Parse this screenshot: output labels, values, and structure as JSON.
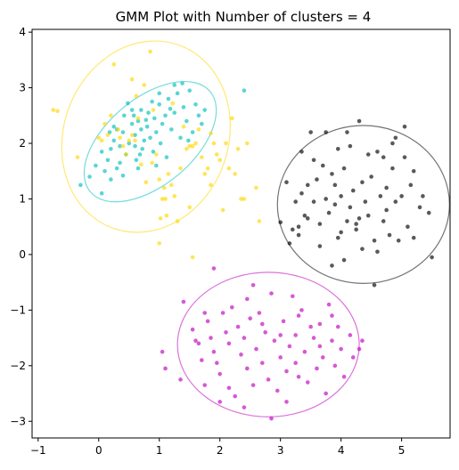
{
  "chart_data": {
    "type": "scatter",
    "title": "GMM Plot with Number of clusters = 4",
    "xlabel": "",
    "ylabel": "",
    "xlim": [
      -1.1,
      5.8
    ],
    "ylim": [
      -3.3,
      4.05
    ],
    "xticks": [
      -1,
      0,
      1,
      2,
      3,
      4,
      5
    ],
    "yticks": [
      -3,
      -2,
      -1,
      0,
      1,
      2,
      3,
      4
    ],
    "grid": false,
    "legend": "none",
    "clusters": [
      {
        "color": "#00bfbf",
        "center": [
          0.85,
          2.03
        ],
        "ellipse": {
          "rx": 1.29,
          "ry": 0.78,
          "angle_deg": 40
        },
        "points": [
          [
            -0.3,
            1.25
          ],
          [
            -0.15,
            1.4
          ],
          [
            -0.05,
            1.6
          ],
          [
            0.05,
            1.85
          ],
          [
            0.15,
            1.7
          ],
          [
            0.2,
            1.9
          ],
          [
            0.25,
            2.05
          ],
          [
            0.3,
            2.25
          ],
          [
            0.35,
            1.95
          ],
          [
            0.4,
            2.2
          ],
          [
            0.42,
            2.5
          ],
          [
            0.45,
            1.8
          ],
          [
            0.5,
            2.0
          ],
          [
            0.55,
            2.35
          ],
          [
            0.6,
            2.15
          ],
          [
            0.62,
            1.7
          ],
          [
            0.65,
            2.4
          ],
          [
            0.7,
            2.6
          ],
          [
            0.72,
            1.9
          ],
          [
            0.75,
            2.05
          ],
          [
            0.8,
            2.3
          ],
          [
            0.82,
            2.55
          ],
          [
            0.85,
            2.1
          ],
          [
            0.9,
            1.85
          ],
          [
            0.92,
            2.45
          ],
          [
            0.95,
            2.2
          ],
          [
            1.0,
            2.7
          ],
          [
            1.02,
            2.0
          ],
          [
            1.05,
            2.35
          ],
          [
            1.1,
            2.5
          ],
          [
            1.12,
            1.75
          ],
          [
            1.15,
            2.8
          ],
          [
            1.2,
            2.25
          ],
          [
            1.25,
            2.55
          ],
          [
            1.3,
            2.9
          ],
          [
            1.35,
            2.1
          ],
          [
            1.4,
            2.65
          ],
          [
            1.45,
            2.4
          ],
          [
            1.5,
            2.95
          ],
          [
            1.55,
            2.2
          ],
          [
            1.6,
            2.7
          ],
          [
            1.65,
            2.5
          ],
          [
            1.7,
            2.35
          ],
          [
            1.75,
            2.6
          ],
          [
            0.3,
            1.55
          ],
          [
            0.2,
            1.35
          ],
          [
            0.1,
            1.5
          ],
          [
            0.55,
            2.6
          ],
          [
            0.65,
            1.55
          ],
          [
            0.95,
            1.6
          ],
          [
            1.0,
            2.9
          ],
          [
            0.48,
            2.72
          ],
          [
            1.25,
            3.05
          ],
          [
            1.38,
            3.08
          ],
          [
            0.78,
            2.42
          ],
          [
            0.35,
            1.65
          ],
          [
            0.6,
            1.95
          ],
          [
            0.88,
            2.75
          ],
          [
            1.18,
            2.62
          ],
          [
            0.7,
            2.25
          ],
          [
            0.18,
            2.2
          ],
          [
            0.05,
            1.1
          ],
          [
            0.58,
            2.5
          ],
          [
            1.48,
            2.05
          ],
          [
            2.4,
            2.95
          ],
          [
            0.4,
            1.42
          ],
          [
            0.25,
            2.3
          ],
          [
            0.68,
            1.8
          ]
        ]
      },
      {
        "color": "#ffd700",
        "center": [
          0.78,
          2.12
        ],
        "ellipse": {
          "rx": 1.36,
          "ry": 1.75,
          "angle_deg": 160
        },
        "points": [
          [
            -0.75,
            2.6
          ],
          [
            -0.68,
            2.58
          ],
          [
            -0.35,
            1.75
          ],
          [
            0.0,
            2.1
          ],
          [
            0.05,
            2.05
          ],
          [
            0.2,
            2.5
          ],
          [
            0.25,
            3.42
          ],
          [
            0.35,
            2.1
          ],
          [
            0.4,
            1.95
          ],
          [
            0.45,
            1.8
          ],
          [
            0.5,
            2.05
          ],
          [
            0.55,
            2.15
          ],
          [
            0.6,
            2.05
          ],
          [
            0.65,
            2.45
          ],
          [
            0.7,
            1.62
          ],
          [
            0.75,
            3.05
          ],
          [
            0.78,
            1.3
          ],
          [
            0.85,
            3.65
          ],
          [
            0.9,
            2.6
          ],
          [
            0.95,
            1.8
          ],
          [
            1.0,
            1.35
          ],
          [
            1.02,
            0.65
          ],
          [
            1.05,
            1.0
          ],
          [
            1.08,
            1.2
          ],
          [
            1.1,
            1.0
          ],
          [
            1.12,
            0.7
          ],
          [
            1.15,
            1.45
          ],
          [
            1.2,
            1.25
          ],
          [
            1.25,
            1.05
          ],
          [
            1.3,
            0.6
          ],
          [
            1.35,
            1.55
          ],
          [
            1.4,
            2.3
          ],
          [
            1.45,
            1.9
          ],
          [
            1.5,
            1.95
          ],
          [
            1.55,
            1.95
          ],
          [
            1.6,
            2.0
          ],
          [
            1.65,
            2.25
          ],
          [
            1.7,
            1.75
          ],
          [
            1.75,
            1.45
          ],
          [
            1.8,
            1.55
          ],
          [
            1.85,
            1.25
          ],
          [
            1.9,
            2.0
          ],
          [
            1.95,
            1.8
          ],
          [
            2.0,
            1.7
          ],
          [
            2.05,
            0.8
          ],
          [
            2.1,
            2.0
          ],
          [
            2.15,
            1.55
          ],
          [
            2.2,
            2.45
          ],
          [
            2.25,
            1.45
          ],
          [
            2.3,
            1.9
          ],
          [
            2.35,
            1.0
          ],
          [
            2.4,
            1.0
          ],
          [
            2.45,
            2.0
          ],
          [
            2.6,
            1.2
          ],
          [
            2.65,
            0.6
          ],
          [
            0.1,
            2.35
          ],
          [
            0.32,
            2.25
          ],
          [
            0.55,
            3.15
          ],
          [
            0.62,
            2.85
          ],
          [
            1.22,
            2.72
          ],
          [
            0.15,
            2.15
          ],
          [
            1.5,
            0.85
          ],
          [
            1.0,
            0.2
          ],
          [
            1.55,
            -0.05
          ],
          [
            0.88,
            1.65
          ],
          [
            1.85,
            2.18
          ]
        ]
      },
      {
        "color": "#000000",
        "center": [
          4.37,
          0.9
        ],
        "ellipse": {
          "rx": 1.42,
          "ry": 1.42,
          "angle_deg": 0
        },
        "points": [
          [
            3.0,
            0.58
          ],
          [
            3.1,
            1.3
          ],
          [
            3.15,
            0.2
          ],
          [
            3.2,
            0.45
          ],
          [
            3.25,
            0.95
          ],
          [
            3.3,
            0.5
          ],
          [
            3.35,
            1.1
          ],
          [
            3.4,
            0.7
          ],
          [
            3.45,
            1.25
          ],
          [
            3.5,
            2.2
          ],
          [
            3.55,
            0.95
          ],
          [
            3.6,
            1.35
          ],
          [
            3.65,
            0.55
          ],
          [
            3.7,
            1.6
          ],
          [
            3.75,
            1.0
          ],
          [
            3.8,
            0.75
          ],
          [
            3.85,
            1.45
          ],
          [
            3.9,
            1.25
          ],
          [
            3.95,
            0.3
          ],
          [
            4.0,
            1.05
          ],
          [
            4.05,
            1.55
          ],
          [
            4.1,
            0.6
          ],
          [
            4.15,
            0.85
          ],
          [
            4.2,
            1.15
          ],
          [
            4.25,
            0.45
          ],
          [
            4.3,
            2.4
          ],
          [
            4.35,
            1.3
          ],
          [
            4.4,
            0.95
          ],
          [
            4.45,
            0.7
          ],
          [
            4.5,
            1.4
          ],
          [
            4.55,
            0.25
          ],
          [
            4.6,
            1.85
          ],
          [
            4.65,
            1.05
          ],
          [
            4.7,
            0.6
          ],
          [
            4.75,
            1.2
          ],
          [
            4.8,
            0.35
          ],
          [
            4.85,
            1.55
          ],
          [
            4.9,
            0.95
          ],
          [
            4.95,
            0.25
          ],
          [
            5.0,
            1.05
          ],
          [
            5.05,
            1.75
          ],
          [
            5.1,
            0.5
          ],
          [
            5.15,
            1.25
          ],
          [
            5.2,
            1.5
          ],
          [
            5.3,
            0.85
          ],
          [
            5.35,
            1.05
          ],
          [
            5.45,
            0.75
          ],
          [
            5.5,
            -0.05
          ],
          [
            3.35,
            1.85
          ],
          [
            3.55,
            1.7
          ],
          [
            3.95,
            1.9
          ],
          [
            4.15,
            1.95
          ],
          [
            4.45,
            1.8
          ],
          [
            4.55,
            -0.55
          ],
          [
            4.85,
            2.0
          ],
          [
            5.05,
            2.3
          ],
          [
            4.25,
            0.55
          ],
          [
            3.85,
            -0.2
          ],
          [
            3.65,
            0.15
          ],
          [
            4.05,
            -0.1
          ],
          [
            4.6,
            0.05
          ],
          [
            5.2,
            0.3
          ],
          [
            3.3,
            0.35
          ],
          [
            3.45,
            0.65
          ],
          [
            4.7,
            1.75
          ],
          [
            3.75,
            2.2
          ],
          [
            4.1,
            2.2
          ],
          [
            4.35,
            0.1
          ],
          [
            4.9,
            2.1
          ],
          [
            3.9,
            0.9
          ],
          [
            4.3,
            0.65
          ],
          [
            4.75,
            0.8
          ],
          [
            4.0,
            0.4
          ]
        ]
      },
      {
        "color": "#bf00bf",
        "center": [
          2.8,
          -1.62
        ],
        "ellipse": {
          "rx": 1.5,
          "ry": 1.3,
          "angle_deg": 0
        },
        "points": [
          [
            1.05,
            -1.75
          ],
          [
            1.1,
            -2.05
          ],
          [
            1.35,
            -2.25
          ],
          [
            1.4,
            -0.85
          ],
          [
            1.55,
            -1.35
          ],
          [
            1.6,
            -1.55
          ],
          [
            1.65,
            -1.6
          ],
          [
            1.7,
            -1.9
          ],
          [
            1.75,
            -2.35
          ],
          [
            1.8,
            -1.2
          ],
          [
            1.85,
            -1.5
          ],
          [
            1.9,
            -1.75
          ],
          [
            1.95,
            -1.95
          ],
          [
            2.0,
            -2.15
          ],
          [
            2.05,
            -1.05
          ],
          [
            2.1,
            -1.4
          ],
          [
            2.15,
            -1.6
          ],
          [
            2.2,
            -0.95
          ],
          [
            2.25,
            -2.55
          ],
          [
            2.3,
            -1.3
          ],
          [
            2.35,
            -1.8
          ],
          [
            2.4,
            -1.5
          ],
          [
            2.45,
            -2.05
          ],
          [
            2.5,
            -1.15
          ],
          [
            2.55,
            -2.35
          ],
          [
            2.6,
            -1.7
          ],
          [
            2.65,
            -1.05
          ],
          [
            2.7,
            -1.95
          ],
          [
            2.75,
            -1.4
          ],
          [
            2.8,
            -2.25
          ],
          [
            2.85,
            -0.7
          ],
          [
            2.9,
            -1.55
          ],
          [
            2.95,
            -2.45
          ],
          [
            3.0,
            -1.85
          ],
          [
            3.05,
            -1.2
          ],
          [
            3.1,
            -2.1
          ],
          [
            3.15,
            -1.65
          ],
          [
            3.2,
            -0.75
          ],
          [
            3.25,
            -1.45
          ],
          [
            3.3,
            -2.2
          ],
          [
            3.35,
            -1.0
          ],
          [
            3.4,
            -1.75
          ],
          [
            3.45,
            -2.3
          ],
          [
            3.5,
            -1.3
          ],
          [
            3.55,
            -1.5
          ],
          [
            3.6,
            -2.05
          ],
          [
            3.65,
            -1.25
          ],
          [
            3.7,
            -1.85
          ],
          [
            3.75,
            -2.5
          ],
          [
            3.8,
            -0.9
          ],
          [
            3.85,
            -1.55
          ],
          [
            3.9,
            -2.0
          ],
          [
            3.95,
            -1.3
          ],
          [
            4.0,
            -1.7
          ],
          [
            4.05,
            -2.2
          ],
          [
            4.15,
            -1.45
          ],
          [
            4.2,
            -1.85
          ],
          [
            4.3,
            -1.7
          ],
          [
            4.35,
            -1.55
          ],
          [
            1.9,
            -0.25
          ],
          [
            2.85,
            -2.95
          ],
          [
            3.1,
            -2.65
          ],
          [
            2.4,
            -2.75
          ],
          [
            2.55,
            -0.55
          ],
          [
            2.15,
            -2.4
          ],
          [
            3.3,
            -1.1
          ],
          [
            2.7,
            -1.25
          ],
          [
            3.0,
            -1.45
          ],
          [
            1.75,
            -1.05
          ],
          [
            3.65,
            -1.65
          ],
          [
            2.45,
            -0.8
          ],
          [
            3.25,
            -1.95
          ],
          [
            3.85,
            -1.1
          ],
          [
            2.0,
            -2.65
          ]
        ]
      }
    ]
  }
}
